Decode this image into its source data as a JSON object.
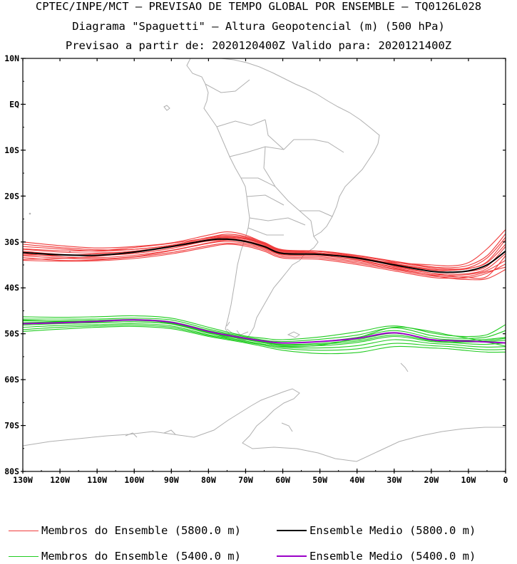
{
  "titles": {
    "line1": "CPTEC/INPE/MCT – PREVISAO DE TEMPO GLOBAL POR ENSEMBLE – TQ0126L028",
    "line2": "Diagrama \"Spaguetti\" – Altura Geopotencial (m) (500 hPa)",
    "line3": "Previsao a partir de: 2020120400Z  Valido para: 2020121400Z"
  },
  "axes": {
    "lat_labels": [
      "10N",
      "EQ",
      "10S",
      "20S",
      "30S",
      "40S",
      "50S",
      "60S",
      "70S",
      "80S"
    ],
    "lat_values": [
      10,
      0,
      -10,
      -20,
      -30,
      -40,
      -50,
      -60,
      -70,
      -80
    ],
    "lon_labels": [
      "130W",
      "120W",
      "110W",
      "100W",
      "90W",
      "80W",
      "70W",
      "60W",
      "50W",
      "40W",
      "30W",
      "20W",
      "10W",
      "0"
    ],
    "lon_values": [
      -130,
      -120,
      -110,
      -100,
      -90,
      -80,
      -70,
      -60,
      -50,
      -40,
      -30,
      -20,
      -10,
      0
    ],
    "lon_range": [
      -130,
      0
    ],
    "lat_range": [
      -80,
      10
    ]
  },
  "colors": {
    "member_5800": "#f03c3c",
    "mean_5800": "#000000",
    "member_5400": "#22cc22",
    "mean_5400": "#9b00c8",
    "coast": "#b0b0b0"
  },
  "legend": [
    {
      "label": "Membros do Ensemble (5800.0 m)",
      "color": "#f03c3c",
      "weight": 1
    },
    {
      "label": "Ensemble Medio (5800.0 m)",
      "color": "#000000",
      "weight": 2
    },
    {
      "label": "Membros do Ensemble (5400.0 m)",
      "color": "#22cc22",
      "weight": 1
    },
    {
      "label": "Ensemble Medio (5400.0 m)",
      "color": "#9b00c8",
      "weight": 2
    }
  ],
  "chart_data": {
    "type": "line",
    "x_label": "",
    "y_label": "",
    "x": [
      -130,
      -120,
      -110,
      -100,
      -90,
      -80,
      -75,
      -70,
      -65,
      -60,
      -50,
      -40,
      -30,
      -20,
      -15,
      -10,
      -5,
      0
    ],
    "series": [
      {
        "name": "Ensemble Medio (5800.0 m)",
        "color": "#000000",
        "values": [
          -32.3,
          -32.8,
          -32.9,
          -32.2,
          -31,
          -29.6,
          -29.4,
          -29.9,
          -31,
          -32.5,
          -32.7,
          -33.5,
          -35,
          -36.4,
          -36.6,
          -36.3,
          -35,
          -32
        ]
      },
      {
        "name": "Ensemble Medio (5400.0 m)",
        "color": "#9b00c8",
        "values": [
          -47.8,
          -47.6,
          -47.3,
          -47.0,
          -47.5,
          -49.5,
          -50.3,
          -51.0,
          -51.6,
          -52.0,
          -51.7,
          -51.0,
          -49.8,
          -51.3,
          -51.5,
          -51.6,
          -51.8,
          -52.0
        ]
      }
    ],
    "members_5800": [
      [
        -30.0,
        -30.8,
        -31.3,
        -31.0,
        -30.2,
        -28.5,
        -27.8,
        -28.5,
        -30.2,
        -31.8,
        -32.4,
        -33.6,
        -34.5,
        -35.0,
        -35.2,
        -34.5,
        -31.5,
        -27.3
      ],
      [
        -31.0,
        -31.5,
        -32.0,
        -31.6,
        -30.7,
        -29.0,
        -28.6,
        -29.0,
        -30.3,
        -31.9,
        -32.0,
        -32.9,
        -34.2,
        -35.4,
        -35.6,
        -35.1,
        -33.0,
        -28.2
      ],
      [
        -31.6,
        -32.2,
        -32.4,
        -32.0,
        -30.9,
        -29.3,
        -29.0,
        -29.4,
        -30.6,
        -32.1,
        -32.4,
        -33.3,
        -34.7,
        -35.9,
        -36.1,
        -35.8,
        -34.3,
        -29.5
      ],
      [
        -32.0,
        -32.7,
        -32.9,
        -32.5,
        -31.4,
        -29.7,
        -29.2,
        -29.7,
        -30.8,
        -32.3,
        -32.6,
        -33.7,
        -35.0,
        -36.4,
        -36.6,
        -36.4,
        -35.3,
        -31.0
      ],
      [
        -32.5,
        -33.2,
        -33.4,
        -32.9,
        -31.8,
        -30.2,
        -29.6,
        -30.0,
        -31.2,
        -32.7,
        -32.9,
        -33.9,
        -35.4,
        -36.8,
        -37.0,
        -36.9,
        -35.8,
        -32.5
      ],
      [
        -33.0,
        -33.5,
        -33.7,
        -33.2,
        -31.9,
        -30.3,
        -29.9,
        -30.3,
        -31.4,
        -32.9,
        -33.2,
        -34.3,
        -35.8,
        -37.1,
        -37.3,
        -37.1,
        -36.2,
        -34.0
      ],
      [
        -33.4,
        -34.0,
        -33.9,
        -33.3,
        -32.3,
        -30.8,
        -30.3,
        -30.6,
        -31.7,
        -33.2,
        -33.5,
        -34.6,
        -36.0,
        -37.4,
        -37.6,
        -37.5,
        -36.5,
        -35.5
      ],
      [
        -34.0,
        -34.2,
        -34.1,
        -33.6,
        -32.6,
        -31.1,
        -30.5,
        -30.9,
        -32.0,
        -33.5,
        -33.8,
        -34.9,
        -36.3,
        -37.7,
        -37.9,
        -37.8,
        -36.8,
        -34.8
      ],
      [
        -32.8,
        -32.9,
        -32.6,
        -32.0,
        -31.1,
        -29.5,
        -29.0,
        -29.3,
        -30.5,
        -32.0,
        -32.4,
        -33.5,
        -35.2,
        -36.8,
        -37.4,
        -37.8,
        -37.5,
        -33.0
      ],
      [
        -31.5,
        -31.9,
        -31.9,
        -31.2,
        -30.3,
        -29.1,
        -28.8,
        -29.2,
        -30.4,
        -31.9,
        -32.1,
        -33.2,
        -34.8,
        -36.1,
        -36.2,
        -35.8,
        -34.5,
        -30.5
      ],
      [
        -33.8,
        -33.6,
        -33.1,
        -32.3,
        -31.1,
        -29.8,
        -29.5,
        -29.8,
        -31.0,
        -32.4,
        -32.9,
        -34.0,
        -35.6,
        -37.2,
        -37.9,
        -38.2,
        -38.0,
        -36.0
      ],
      [
        -30.5,
        -31.2,
        -31.7,
        -31.6,
        -30.7,
        -29.0,
        -28.3,
        -28.8,
        -30.1,
        -31.7,
        -32.0,
        -33.0,
        -34.4,
        -35.6,
        -35.9,
        -35.6,
        -33.5,
        -29.0
      ]
    ],
    "members_5400": [
      [
        -46.3,
        -46.4,
        -46.3,
        -46.1,
        -46.6,
        -48.6,
        -49.6,
        -50.5,
        -51.0,
        -51.3,
        -50.7,
        -49.6,
        -48.3,
        -49.8,
        -50.4,
        -50.6,
        -50.2,
        -48.0
      ],
      [
        -46.8,
        -46.8,
        -46.8,
        -46.6,
        -47.0,
        -49.0,
        -49.9,
        -50.7,
        -51.4,
        -51.7,
        -51.2,
        -50.3,
        -48.7,
        -50.4,
        -50.9,
        -51.0,
        -50.7,
        -49.3
      ],
      [
        -47.2,
        -47.2,
        -47.1,
        -46.9,
        -47.4,
        -49.3,
        -50.1,
        -50.9,
        -51.6,
        -52.0,
        -51.7,
        -50.8,
        -49.3,
        -50.9,
        -51.3,
        -51.4,
        -51.2,
        -50.8
      ],
      [
        -47.6,
        -47.4,
        -47.3,
        -47.1,
        -47.6,
        -49.6,
        -50.4,
        -51.1,
        -51.8,
        -52.3,
        -52.1,
        -51.3,
        -49.9,
        -51.3,
        -51.6,
        -51.8,
        -51.7,
        -51.4
      ],
      [
        -48.1,
        -47.8,
        -47.6,
        -47.4,
        -47.9,
        -49.9,
        -50.6,
        -51.3,
        -52.0,
        -52.6,
        -52.6,
        -51.9,
        -50.6,
        -51.7,
        -51.9,
        -52.2,
        -52.3,
        -52.0
      ],
      [
        -48.6,
        -48.2,
        -48.0,
        -47.8,
        -48.3,
        -50.2,
        -50.9,
        -51.6,
        -52.3,
        -52.9,
        -53.1,
        -52.6,
        -51.3,
        -52.1,
        -52.3,
        -52.7,
        -52.9,
        -52.8
      ],
      [
        -49.1,
        -48.6,
        -48.3,
        -48.1,
        -48.6,
        -50.4,
        -51.1,
        -51.8,
        -52.5,
        -53.2,
        -53.6,
        -53.3,
        -52.1,
        -52.6,
        -52.8,
        -53.2,
        -53.5,
        -53.4
      ],
      [
        -49.5,
        -49.0,
        -48.6,
        -48.4,
        -48.9,
        -50.6,
        -51.3,
        -52.0,
        -52.8,
        -53.6,
        -54.3,
        -54.1,
        -52.8,
        -53.1,
        -53.3,
        -53.7,
        -54.0,
        -54.0
      ],
      [
        -47.0,
        -47.3,
        -47.5,
        -47.4,
        -47.8,
        -49.7,
        -50.5,
        -51.2,
        -51.9,
        -52.4,
        -52.3,
        -51.6,
        -50.3,
        -51.5,
        -51.8,
        -51.8,
        -51.5,
        -51.0
      ],
      [
        -47.9,
        -47.5,
        -47.2,
        -47.0,
        -47.7,
        -49.8,
        -50.8,
        -51.6,
        -52.3,
        -52.8,
        -52.5,
        -50.9,
        -48.6,
        -49.5,
        -50.3,
        -51.0,
        -51.8,
        -52.7
      ]
    ]
  }
}
